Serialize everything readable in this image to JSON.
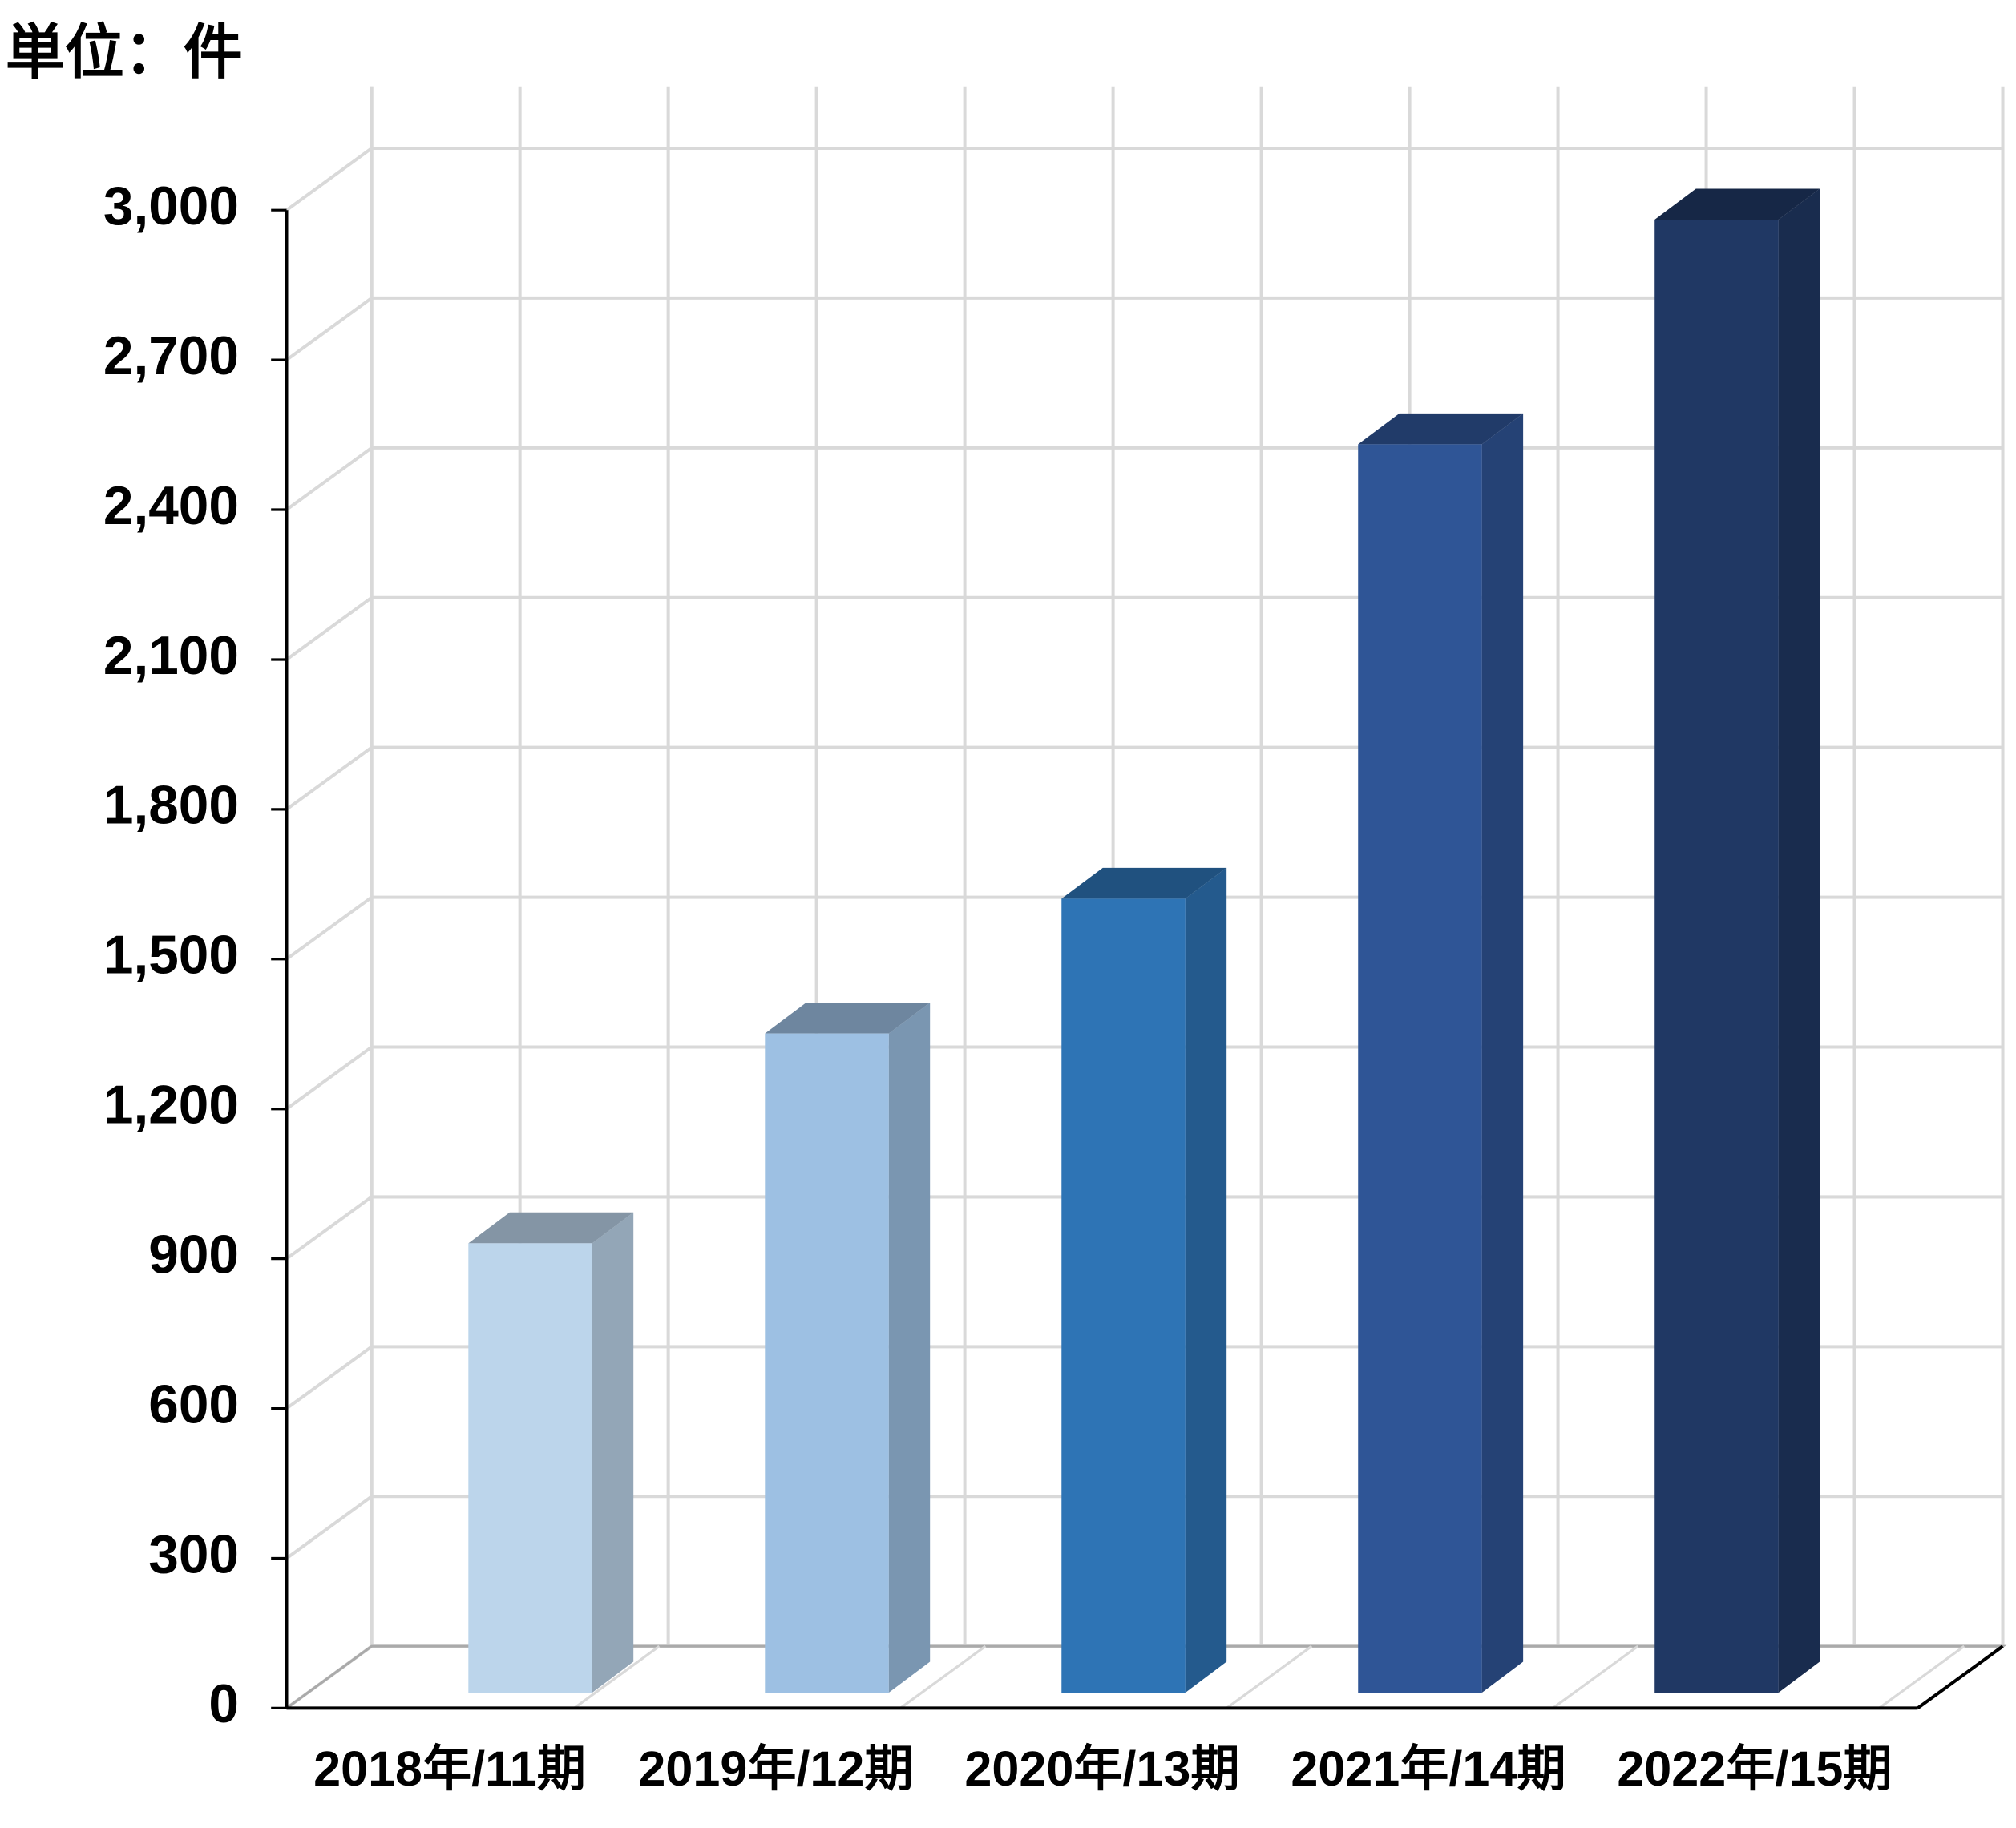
{
  "chart_data": {
    "type": "bar",
    "title": "単位：件",
    "categories": [
      "2018年/11期",
      "2019年/12期",
      "2020年/13期",
      "2021年/14期",
      "2022年/15期"
    ],
    "values": [
      900,
      1320,
      1590,
      2500,
      2950
    ],
    "colors": [
      "#bcd5eb",
      "#9dc0e3",
      "#2e74b5",
      "#2f5596",
      "#203864"
    ],
    "ylim": [
      0,
      3000
    ],
    "yticks": [
      0,
      300,
      600,
      900,
      {
        "value": 1200,
        "label": "1,200"
      },
      {
        "value": 1500,
        "label": "1,500"
      },
      {
        "value": 1800,
        "label": "1,800"
      },
      {
        "value": 2100,
        "label": "2,100"
      },
      {
        "value": 2400,
        "label": "2,400"
      },
      {
        "value": 2700,
        "label": "2,700"
      },
      {
        "value": 3000,
        "label": "3,000"
      }
    ],
    "grid": true
  }
}
